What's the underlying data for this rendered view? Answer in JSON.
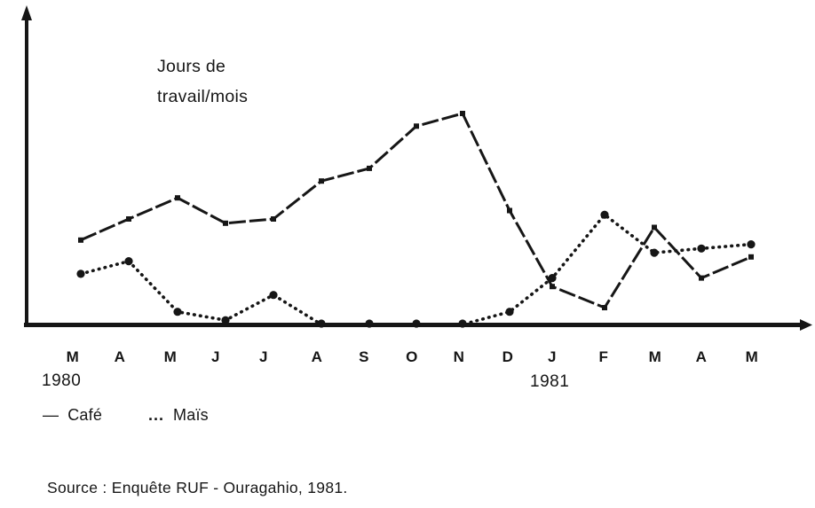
{
  "page": {
    "background": "#ffffff",
    "ink_color": "#161616",
    "source": "Source : Enquête RUF - Ouragahio, 1981."
  },
  "chart_data": {
    "type": "line",
    "title_lines": [
      "Jours de",
      "travail/mois"
    ],
    "ylabel": "Jours de travail/mois",
    "xlabel": "",
    "categories": [
      "M",
      "A",
      "M",
      "J",
      "J",
      "A",
      "S",
      "O",
      "N",
      "D",
      "J",
      "F",
      "M",
      "A",
      "M"
    ],
    "year_markers": [
      {
        "label": "1980",
        "month_index": 0
      },
      {
        "label": "1981",
        "month_index": 10
      }
    ],
    "series": [
      {
        "name": "Café",
        "line_style": "solid",
        "marker": "square",
        "legend_glyph": "—",
        "values": [
          10,
          12.5,
          15,
          12,
          12.5,
          17,
          18.5,
          23.5,
          25,
          13.5,
          4.5,
          2,
          11.5,
          5.5,
          8
        ]
      },
      {
        "name": "Maïs",
        "line_style": "dotted",
        "marker": "circle",
        "legend_glyph": "...",
        "values": [
          6,
          7.5,
          1.5,
          0.5,
          3.5,
          0,
          0,
          0,
          0,
          1.5,
          5.5,
          13,
          8.5,
          9,
          9.5
        ]
      }
    ],
    "ylim": [
      0,
      26
    ],
    "grid": false,
    "axis_arrows": true,
    "y_ticks_labeled": false,
    "legend_position": "below-axis"
  }
}
